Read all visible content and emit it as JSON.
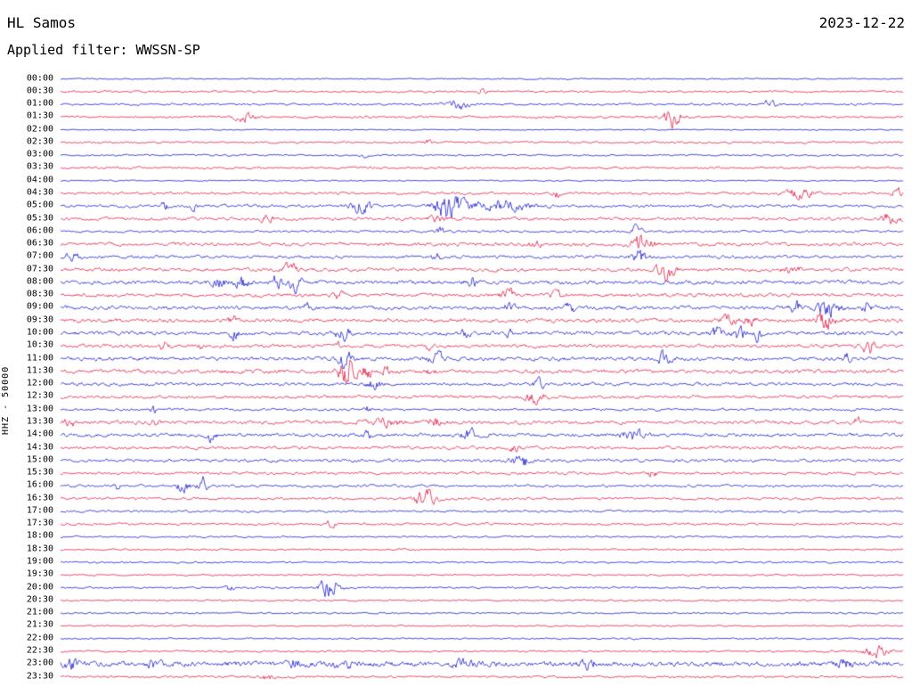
{
  "header": {
    "station": "HL Samos",
    "date": "2023-12-22",
    "filter": "Applied filter: WWSSN-SP"
  },
  "chart_data": {
    "type": "line",
    "subtype": "helicorder-seismogram",
    "title": "HL Samos 2023-12-22",
    "station": "HL Samos",
    "date": "2023-12-22",
    "filter": "WWSSN-SP",
    "ylabel": "HHZ - 50000",
    "row_duration_minutes": 30,
    "rows_start": "00:00",
    "rows_end": "23:30",
    "legend": "off",
    "grid": "off",
    "trace_colors": {
      "blue": "#1010cc",
      "red": "#e0103c"
    },
    "rows": [
      {
        "time": "00:00",
        "color": "blue",
        "noise": 0.7,
        "events": []
      },
      {
        "time": "00:30",
        "color": "red",
        "noise": 1.1,
        "events": [
          {
            "x": 0.5,
            "a": 5,
            "w": 0.004
          }
        ]
      },
      {
        "time": "01:00",
        "color": "blue",
        "noise": 1.1,
        "events": [
          {
            "x": 0.47,
            "a": 6,
            "w": 0.015
          },
          {
            "x": 0.843,
            "a": 5,
            "w": 0.008
          }
        ]
      },
      {
        "time": "01:30",
        "color": "red",
        "noise": 1.2,
        "events": [
          {
            "x": 0.219,
            "a": 5,
            "w": 0.012
          },
          {
            "x": 0.726,
            "a": 13,
            "w": 0.01
          }
        ]
      },
      {
        "time": "02:00",
        "color": "blue",
        "noise": 0.6,
        "events": []
      },
      {
        "time": "02:30",
        "color": "red",
        "noise": 1.1,
        "events": [
          {
            "x": 0.436,
            "a": 4,
            "w": 0.004
          }
        ]
      },
      {
        "time": "03:00",
        "color": "blue",
        "noise": 1.0,
        "events": [
          {
            "x": 0.362,
            "a": 3,
            "w": 0.006
          }
        ]
      },
      {
        "time": "03:30",
        "color": "red",
        "noise": 1.2,
        "events": []
      },
      {
        "time": "04:00",
        "color": "blue",
        "noise": 0.7,
        "events": []
      },
      {
        "time": "04:30",
        "color": "red",
        "noise": 1.4,
        "events": [
          {
            "x": 0.589,
            "a": 4,
            "w": 0.005
          },
          {
            "x": 0.879,
            "a": 6,
            "w": 0.015
          },
          {
            "x": 0.993,
            "a": 7,
            "w": 0.006
          }
        ]
      },
      {
        "time": "05:00",
        "color": "blue",
        "noise": 1.6,
        "events": [
          {
            "x": 0.124,
            "a": 5,
            "w": 0.004
          },
          {
            "x": 0.159,
            "a": 6,
            "w": 0.005
          },
          {
            "x": 0.356,
            "a": 7,
            "w": 0.012
          },
          {
            "x": 0.462,
            "a": 15,
            "w": 0.018
          },
          {
            "x": 0.52,
            "a": 6,
            "w": 0.035
          }
        ]
      },
      {
        "time": "05:30",
        "color": "red",
        "noise": 1.7,
        "events": [
          {
            "x": 0.245,
            "a": 5,
            "w": 0.006
          },
          {
            "x": 0.446,
            "a": 4,
            "w": 0.01
          },
          {
            "x": 0.985,
            "a": 7,
            "w": 0.01
          }
        ]
      },
      {
        "time": "06:00",
        "color": "blue",
        "noise": 1.2,
        "events": [
          {
            "x": 0.451,
            "a": 5,
            "w": 0.005
          },
          {
            "x": 0.684,
            "a": 7,
            "w": 0.006
          }
        ]
      },
      {
        "time": "06:30",
        "color": "red",
        "noise": 1.9,
        "events": [
          {
            "x": 0.562,
            "a": 4,
            "w": 0.008
          },
          {
            "x": 0.691,
            "a": 10,
            "w": 0.012
          }
        ]
      },
      {
        "time": "07:00",
        "color": "blue",
        "noise": 1.7,
        "events": [
          {
            "x": 0.015,
            "a": 6,
            "w": 0.008
          },
          {
            "x": 0.446,
            "a": 4,
            "w": 0.006
          },
          {
            "x": 0.687,
            "a": 8,
            "w": 0.008
          }
        ]
      },
      {
        "time": "07:30",
        "color": "red",
        "noise": 1.9,
        "events": [
          {
            "x": 0.272,
            "a": 7,
            "w": 0.008
          },
          {
            "x": 0.719,
            "a": 11,
            "w": 0.01
          },
          {
            "x": 0.869,
            "a": 4,
            "w": 0.01
          }
        ]
      },
      {
        "time": "08:00",
        "color": "blue",
        "noise": 2.1,
        "events": [
          {
            "x": 0.187,
            "a": 7,
            "w": 0.008
          },
          {
            "x": 0.214,
            "a": 8,
            "w": 0.008
          },
          {
            "x": 0.256,
            "a": 7,
            "w": 0.006
          },
          {
            "x": 0.277,
            "a": 9,
            "w": 0.008
          },
          {
            "x": 0.488,
            "a": 6,
            "w": 0.006
          }
        ]
      },
      {
        "time": "08:30",
        "color": "red",
        "noise": 1.9,
        "events": [
          {
            "x": 0.33,
            "a": 5,
            "w": 0.006
          },
          {
            "x": 0.531,
            "a": 7,
            "w": 0.008
          },
          {
            "x": 0.589,
            "a": 5,
            "w": 0.006
          }
        ]
      },
      {
        "time": "09:00",
        "color": "blue",
        "noise": 2.1,
        "events": [
          {
            "x": 0.293,
            "a": 5,
            "w": 0.005
          },
          {
            "x": 0.533,
            "a": 6,
            "w": 0.006
          },
          {
            "x": 0.605,
            "a": 6,
            "w": 0.006
          },
          {
            "x": 0.872,
            "a": 7,
            "w": 0.006
          },
          {
            "x": 0.911,
            "a": 10,
            "w": 0.012
          },
          {
            "x": 0.956,
            "a": 7,
            "w": 0.005
          }
        ]
      },
      {
        "time": "09:30",
        "color": "red",
        "noise": 2.1,
        "events": [
          {
            "x": 0.205,
            "a": 5,
            "w": 0.005
          },
          {
            "x": 0.793,
            "a": 7,
            "w": 0.008
          },
          {
            "x": 0.818,
            "a": 7,
            "w": 0.006
          },
          {
            "x": 0.906,
            "a": 11,
            "w": 0.012
          }
        ]
      },
      {
        "time": "10:00",
        "color": "blue",
        "noise": 2.1,
        "events": [
          {
            "x": 0.205,
            "a": 6,
            "w": 0.005
          },
          {
            "x": 0.335,
            "a": 8,
            "w": 0.008
          },
          {
            "x": 0.48,
            "a": 5,
            "w": 0.005
          },
          {
            "x": 0.533,
            "a": 5,
            "w": 0.005
          },
          {
            "x": 0.779,
            "a": 7,
            "w": 0.006
          },
          {
            "x": 0.806,
            "a": 8,
            "w": 0.008
          },
          {
            "x": 0.827,
            "a": 7,
            "w": 0.005
          }
        ]
      },
      {
        "time": "10:30",
        "color": "red",
        "noise": 1.9,
        "events": [
          {
            "x": 0.124,
            "a": 5,
            "w": 0.005
          },
          {
            "x": 0.166,
            "a": 5,
            "w": 0.004
          },
          {
            "x": 0.33,
            "a": 5,
            "w": 0.004
          },
          {
            "x": 0.436,
            "a": 5,
            "w": 0.004
          },
          {
            "x": 0.959,
            "a": 8,
            "w": 0.008
          }
        ]
      },
      {
        "time": "11:00",
        "color": "blue",
        "noise": 2.1,
        "events": [
          {
            "x": 0.338,
            "a": 9,
            "w": 0.008
          },
          {
            "x": 0.446,
            "a": 7,
            "w": 0.008
          },
          {
            "x": 0.716,
            "a": 7,
            "w": 0.008
          },
          {
            "x": 0.932,
            "a": 5,
            "w": 0.005
          }
        ]
      },
      {
        "time": "11:30",
        "color": "red",
        "noise": 2.1,
        "events": [
          {
            "x": 0.34,
            "a": 15,
            "w": 0.01
          },
          {
            "x": 0.362,
            "a": 10,
            "w": 0.006
          },
          {
            "x": 0.385,
            "a": 6,
            "w": 0.005
          },
          {
            "x": 0.439,
            "a": 5,
            "w": 0.004
          }
        ]
      },
      {
        "time": "12:00",
        "color": "blue",
        "noise": 1.7,
        "events": [
          {
            "x": 0.372,
            "a": 6,
            "w": 0.008
          },
          {
            "x": 0.568,
            "a": 5,
            "w": 0.008
          }
        ]
      },
      {
        "time": "12:30",
        "color": "red",
        "noise": 1.7,
        "events": [
          {
            "x": 0.562,
            "a": 6,
            "w": 0.012
          }
        ]
      },
      {
        "time": "13:00",
        "color": "blue",
        "noise": 1.4,
        "events": [
          {
            "x": 0.11,
            "a": 5,
            "w": 0.004
          },
          {
            "x": 0.364,
            "a": 4,
            "w": 0.004
          }
        ]
      },
      {
        "time": "13:30",
        "color": "red",
        "noise": 1.9,
        "events": [
          {
            "x": 0.011,
            "a": 5,
            "w": 0.006
          },
          {
            "x": 0.11,
            "a": 5,
            "w": 0.005
          },
          {
            "x": 0.383,
            "a": 5,
            "w": 0.02
          },
          {
            "x": 0.446,
            "a": 5,
            "w": 0.01
          },
          {
            "x": 0.945,
            "a": 5,
            "w": 0.005
          }
        ]
      },
      {
        "time": "14:00",
        "color": "blue",
        "noise": 1.9,
        "events": [
          {
            "x": 0.179,
            "a": 7,
            "w": 0.006
          },
          {
            "x": 0.364,
            "a": 4,
            "w": 0.005
          },
          {
            "x": 0.485,
            "a": 7,
            "w": 0.008
          },
          {
            "x": 0.679,
            "a": 7,
            "w": 0.012
          }
        ]
      },
      {
        "time": "14:30",
        "color": "red",
        "noise": 1.7,
        "events": [
          {
            "x": 0.539,
            "a": 6,
            "w": 0.005
          }
        ]
      },
      {
        "time": "15:00",
        "color": "blue",
        "noise": 1.7,
        "events": [
          {
            "x": 0.547,
            "a": 9,
            "w": 0.01
          }
        ]
      },
      {
        "time": "15:30",
        "color": "red",
        "noise": 1.5,
        "events": [
          {
            "x": 0.702,
            "a": 7,
            "w": 0.005
          }
        ]
      },
      {
        "time": "16:00",
        "color": "blue",
        "noise": 1.4,
        "events": [
          {
            "x": 0.066,
            "a": 4,
            "w": 0.004
          },
          {
            "x": 0.147,
            "a": 7,
            "w": 0.008
          },
          {
            "x": 0.169,
            "a": 8,
            "w": 0.006
          }
        ]
      },
      {
        "time": "16:30",
        "color": "red",
        "noise": 1.4,
        "events": [
          {
            "x": 0.433,
            "a": 10,
            "w": 0.012
          }
        ]
      },
      {
        "time": "17:00",
        "color": "blue",
        "noise": 1.2,
        "events": []
      },
      {
        "time": "17:30",
        "color": "red",
        "noise": 1.2,
        "events": [
          {
            "x": 0.321,
            "a": 6,
            "w": 0.005
          }
        ]
      },
      {
        "time": "18:00",
        "color": "blue",
        "noise": 1.0,
        "events": []
      },
      {
        "time": "18:30",
        "color": "red",
        "noise": 0.9,
        "events": []
      },
      {
        "time": "19:00",
        "color": "blue",
        "noise": 0.9,
        "events": []
      },
      {
        "time": "19:30",
        "color": "red",
        "noise": 0.9,
        "events": []
      },
      {
        "time": "20:00",
        "color": "blue",
        "noise": 1.0,
        "events": [
          {
            "x": 0.201,
            "a": 5,
            "w": 0.004
          },
          {
            "x": 0.319,
            "a": 12,
            "w": 0.012
          }
        ]
      },
      {
        "time": "20:30",
        "color": "red",
        "noise": 0.9,
        "events": []
      },
      {
        "time": "21:00",
        "color": "blue",
        "noise": 0.9,
        "events": []
      },
      {
        "time": "21:30",
        "color": "red",
        "noise": 0.8,
        "events": []
      },
      {
        "time": "22:00",
        "color": "blue",
        "noise": 0.9,
        "events": []
      },
      {
        "time": "22:30",
        "color": "red",
        "noise": 1.0,
        "events": [
          {
            "x": 0.969,
            "a": 6,
            "w": 0.015
          }
        ]
      },
      {
        "time": "23:00",
        "color": "blue",
        "noise": 2.8,
        "events": [
          {
            "x": 0.013,
            "a": 5,
            "w": 0.01
          },
          {
            "x": 0.11,
            "a": 4,
            "w": 0.008
          },
          {
            "x": 0.277,
            "a": 4,
            "w": 0.01
          },
          {
            "x": 0.335,
            "a": 5,
            "w": 0.01
          },
          {
            "x": 0.478,
            "a": 4,
            "w": 0.012
          },
          {
            "x": 0.626,
            "a": 4,
            "w": 0.01
          },
          {
            "x": 0.932,
            "a": 4,
            "w": 0.01
          }
        ]
      },
      {
        "time": "23:30",
        "color": "red",
        "noise": 1.2,
        "events": [
          {
            "x": 0.245,
            "a": 4,
            "w": 0.006
          }
        ]
      }
    ]
  }
}
